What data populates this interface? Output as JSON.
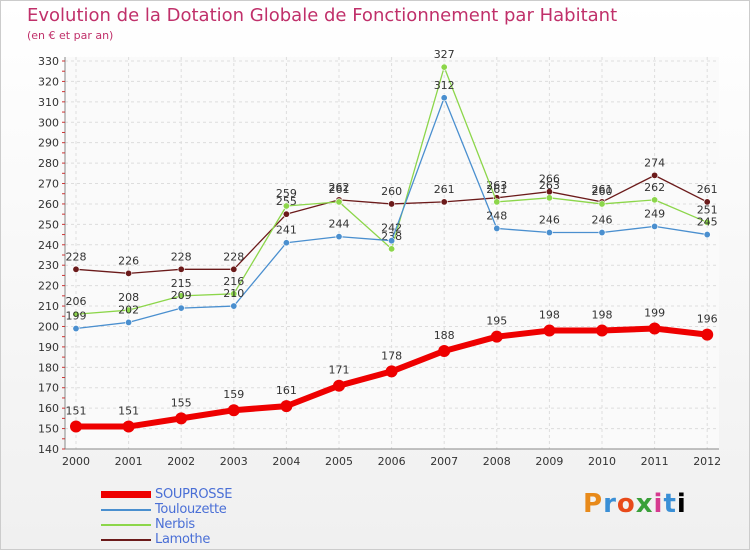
{
  "title": "Evolution de la Dotation Globale de Fonctionnement par Habitant",
  "subtitle": "(en € et par an)",
  "logo": "Proxiti",
  "chart_data": {
    "type": "line",
    "x": [
      "2000",
      "2001",
      "2002",
      "2003",
      "2004",
      "2005",
      "2006",
      "2007",
      "2008",
      "2009",
      "2010",
      "2011",
      "2012"
    ],
    "ylim": [
      140,
      330
    ],
    "yticks": [
      140,
      150,
      160,
      170,
      180,
      190,
      200,
      210,
      220,
      230,
      240,
      250,
      260,
      270,
      280,
      290,
      300,
      310,
      320,
      330
    ],
    "grid": true,
    "legend_position": "bottom-left",
    "series": [
      {
        "name": "SOUPROSSE",
        "color": "#ee0000",
        "values": [
          151,
          151,
          155,
          159,
          161,
          171,
          178,
          188,
          195,
          198,
          198,
          199,
          196
        ]
      },
      {
        "name": "Toulouzette",
        "color": "#4a8fcf",
        "values": [
          199,
          202,
          209,
          210,
          241,
          244,
          242,
          312,
          248,
          246,
          246,
          249,
          245
        ]
      },
      {
        "name": "Nerbis",
        "color": "#8cd64a",
        "values": [
          206,
          208,
          215,
          216,
          259,
          261,
          238,
          327,
          261,
          263,
          260,
          262,
          251
        ]
      },
      {
        "name": "Lamothe",
        "color": "#6b1a1a",
        "values": [
          228,
          226,
          228,
          228,
          255,
          262,
          260,
          261,
          263,
          266,
          261,
          274,
          261
        ]
      }
    ]
  }
}
